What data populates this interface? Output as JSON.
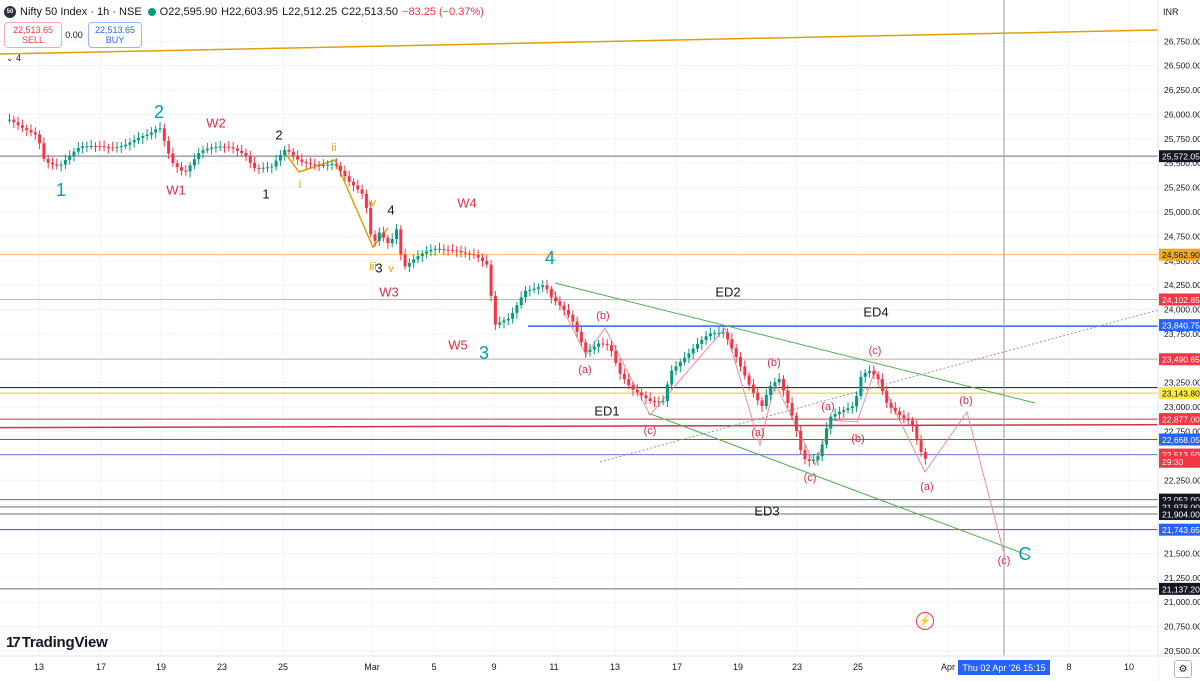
{
  "header": {
    "symbol_logo": "50",
    "title": "Nifty 50 Index · 1h · NSE",
    "open": "O22,595.90",
    "high": "H22,603.95",
    "low": "L22,512.25",
    "close": "C22,513.50",
    "change": "−83.25 (−0.37%)",
    "status_color": "#089981"
  },
  "trade": {
    "sell_price": "22,513.65",
    "sell_label": "SELL",
    "spread": "0.00",
    "buy_price": "22,513.65",
    "buy_label": "BUY",
    "indicator_toggle": "⌄ 4"
  },
  "currency": "INR",
  "logo": {
    "mark": "17",
    "text": "TradingView"
  },
  "crosshair_date": "Thu 02 Apr '26  15:15",
  "price_axis": {
    "ticks": [
      "26,750.00",
      "26,500.00",
      "26,250.00",
      "26,000.00",
      "25,750.00",
      "25,500.00",
      "25,250.00",
      "25,000.00",
      "24,750.00",
      "24,500.00",
      "24,250.00",
      "24,000.00",
      "23,750.00",
      "23,500.00",
      "23,250.00",
      "23,000.00",
      "22,750.00",
      "22,500.00",
      "22,250.00",
      "22,000.00",
      "21,750.00",
      "21,500.00",
      "21,250.00",
      "21,000.00",
      "20,750.00",
      "20,500.00"
    ],
    "tags": [
      {
        "text": "25,572.05",
        "value": 25572.05,
        "bg": "#131722",
        "fg": "#ffffff"
      },
      {
        "text": "24,562.90",
        "value": 24562.9,
        "bg": "#f5a623",
        "fg": "#131722"
      },
      {
        "text": "24,102.85",
        "value": 24102.85,
        "bg": "#f23645",
        "fg": "#ffffff"
      },
      {
        "text": "23,840.75",
        "value": 23840.75,
        "bg": "#2962ff",
        "fg": "#ffffff"
      },
      {
        "text": "23,490.65",
        "value": 23490.65,
        "bg": "#f23645",
        "fg": "#ffffff"
      },
      {
        "text": "23,143.80",
        "value": 23143.8,
        "bg": "#ffeb3b",
        "fg": "#131722"
      },
      {
        "text": "22,877.00",
        "value": 22877,
        "bg": "#f23645",
        "fg": "#ffffff"
      },
      {
        "text": "22,668.05",
        "value": 22668.05,
        "bg": "#2962ff",
        "fg": "#ffffff"
      },
      {
        "text": "22,513.50",
        "value": 22513.5,
        "bg": "#f23645",
        "fg": "#ffffff"
      },
      {
        "text": "29:30",
        "value": 22440,
        "bg": "#f23645",
        "fg": "#ffffff"
      },
      {
        "text": "22,052.00",
        "value": 22052,
        "bg": "#131722",
        "fg": "#ffffff"
      },
      {
        "text": "21,978.00",
        "value": 21978,
        "bg": "#131722",
        "fg": "#ffffff"
      },
      {
        "text": "21,904.00",
        "value": 21904,
        "bg": "#131722",
        "fg": "#ffffff"
      },
      {
        "text": "21,743.65",
        "value": 21743.65,
        "bg": "#2962ff",
        "fg": "#ffffff"
      },
      {
        "text": "21,137.20",
        "value": 21137.2,
        "bg": "#131722",
        "fg": "#ffffff"
      }
    ]
  },
  "time_axis": [
    "13",
    "17",
    "19",
    "23",
    "25",
    "Mar",
    "5",
    "9",
    "11",
    "13",
    "17",
    "19",
    "23",
    "25",
    "Apr",
    "8",
    "10"
  ],
  "wave_labels": [
    {
      "text": "2",
      "color": "#00a0a8",
      "size": 18
    },
    {
      "text": "1",
      "color": "#00a0a8",
      "size": 18
    },
    {
      "text": "W2",
      "color": "#d8304a",
      "size": 13
    },
    {
      "text": "W1",
      "color": "#d8304a",
      "size": 13
    },
    {
      "text": "2",
      "color": "#131722",
      "size": 13
    },
    {
      "text": "1",
      "color": "#131722",
      "size": 13
    },
    {
      "text": "ii",
      "color": "#e0a000",
      "size": 11
    },
    {
      "text": "i",
      "color": "#e0a000",
      "size": 11
    },
    {
      "text": "iv",
      "color": "#e0a000",
      "size": 11
    },
    {
      "text": "4",
      "color": "#131722",
      "size": 13
    },
    {
      "text": "iii",
      "color": "#e0a000",
      "size": 11
    },
    {
      "text": "3",
      "color": "#131722",
      "size": 13
    },
    {
      "text": "v",
      "color": "#e0a000",
      "size": 11
    },
    {
      "text": "W4",
      "color": "#d8304a",
      "size": 13
    },
    {
      "text": "W3",
      "color": "#d8304a",
      "size": 13
    },
    {
      "text": "4",
      "color": "#00a0a8",
      "size": 18
    },
    {
      "text": "3",
      "color": "#00a0a8",
      "size": 18
    },
    {
      "text": "W5",
      "color": "#d8304a",
      "size": 13
    },
    {
      "text": "ED2",
      "color": "#131722",
      "size": 13
    },
    {
      "text": "(b)",
      "color": "#d8304a",
      "size": 11
    },
    {
      "text": "(a)",
      "color": "#d8304a",
      "size": 11
    },
    {
      "text": "ED1",
      "color": "#131722",
      "size": 13
    },
    {
      "text": "(c)",
      "color": "#d8304a",
      "size": 11
    },
    {
      "text": "(b)",
      "color": "#d8304a",
      "size": 11
    },
    {
      "text": "(a)",
      "color": "#d8304a",
      "size": 11
    },
    {
      "text": "ED3",
      "color": "#131722",
      "size": 13
    },
    {
      "text": "(c)",
      "color": "#d8304a",
      "size": 11
    },
    {
      "text": "(a)",
      "color": "#d8304a",
      "size": 11
    },
    {
      "text": "(b)",
      "color": "#d8304a",
      "size": 11
    },
    {
      "text": "ED4",
      "color": "#131722",
      "size": 13
    },
    {
      "text": "(c)",
      "color": "#d8304a",
      "size": 11
    },
    {
      "text": "(b)",
      "color": "#d8304a",
      "size": 11
    },
    {
      "text": "(a)",
      "color": "#d8304a",
      "size": 11
    },
    {
      "text": "(c)",
      "color": "#d8304a",
      "size": 11
    },
    {
      "text": "C",
      "color": "#00a0a8",
      "size": 18
    }
  ],
  "colors": {
    "up": "#089981",
    "down": "#f23645",
    "grid": "#f0f3fa",
    "wave_red": "#f08c9c",
    "channel": "#4caf50",
    "gold": "#e0a000"
  }
}
